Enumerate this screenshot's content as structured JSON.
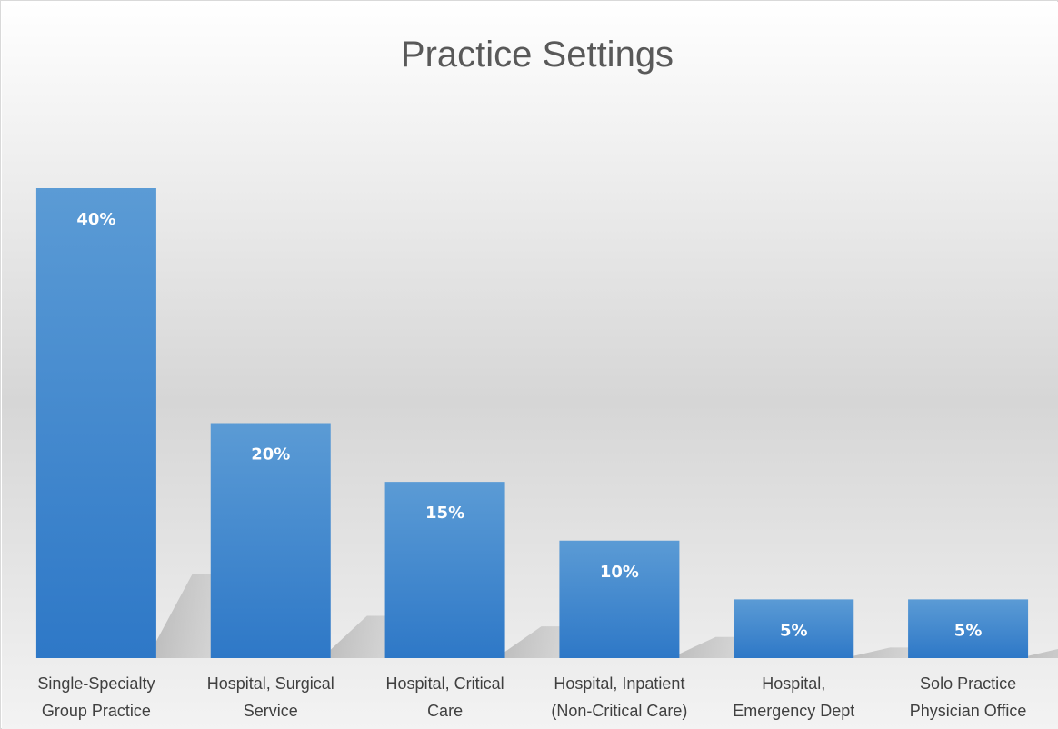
{
  "chart_data": {
    "type": "bar",
    "title": "Practice Settings",
    "xlabel": "",
    "ylabel": "",
    "categories": [
      [
        "Single-Specialty",
        "Group Practice"
      ],
      [
        "Hospital, Surgical",
        "Service"
      ],
      [
        "Hospital, Critical",
        "Care"
      ],
      [
        "Hospital, Inpatient",
        "(Non-Critical Care)"
      ],
      [
        "Hospital,",
        "Emergency Dept"
      ],
      [
        "Solo Practice",
        "Physician Office"
      ]
    ],
    "values": [
      40,
      20,
      15,
      10,
      5,
      5
    ],
    "data_labels": [
      "40%",
      "20%",
      "15%",
      "10%",
      "5%",
      "5%"
    ],
    "ylim": [
      0,
      40
    ],
    "grid": false,
    "legend": "none",
    "colors": {
      "bar_top": "#5b9bd5",
      "bar_bottom": "#2e78c7",
      "background_top": "#ffffff",
      "background_mid": "#d0d0d0",
      "title": "#595959",
      "label": "#404040"
    }
  }
}
